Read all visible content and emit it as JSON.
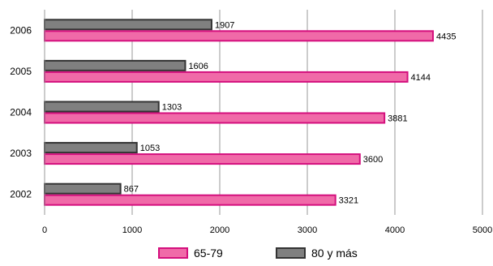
{
  "chart_data": {
    "type": "bar",
    "orientation": "horizontal",
    "categories": [
      "2006",
      "2005",
      "2004",
      "2003",
      "2002"
    ],
    "series": [
      {
        "name": "80 y más",
        "values": [
          1907,
          1606,
          1303,
          1053,
          867
        ],
        "color": "#808080"
      },
      {
        "name": "65-79",
        "values": [
          4435,
          4144,
          3881,
          3600,
          3321
        ],
        "color": "#f06aa8"
      }
    ],
    "xlim": [
      0,
      5000
    ],
    "xticks": [
      "0",
      "1000",
      "2000",
      "3000",
      "4000",
      "5000"
    ],
    "grid": "vertical",
    "legend_position": "bottom",
    "legend_order": [
      "65-79",
      "80 y más"
    ],
    "title": "",
    "xlabel": "",
    "ylabel": ""
  }
}
